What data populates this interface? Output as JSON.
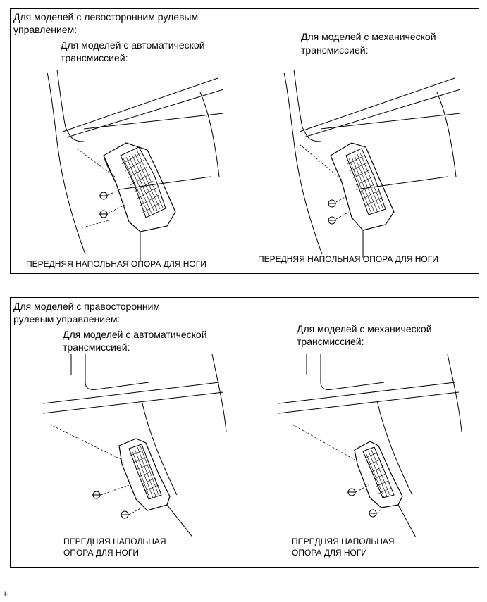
{
  "top_panel": {
    "heading_line1": "Для моделей с левосторонним рулевым",
    "heading_line2": "управлением:",
    "left": {
      "title_line1": "Для моделей с автоматической",
      "title_line2": "трансмиссией:",
      "callout": "ПЕРЕДНЯЯ НАПОЛЬНАЯ ОПОРА ДЛЯ НОГИ"
    },
    "right": {
      "title_line1": "Для моделей с механической",
      "title_line2": "трансмиссией:",
      "callout": "ПЕРЕДНЯЯ НАПОЛЬНАЯ ОПОРА ДЛЯ НОГИ"
    }
  },
  "bottom_panel": {
    "heading_line1": "Для моделей с правосторонним",
    "heading_line2": "рулевым управлением:",
    "left": {
      "title_line1": "Для моделей с автоматической",
      "title_line2": "трансмиссией:",
      "callout_line1": "ПЕРЕДНЯЯ НАПОЛЬНАЯ",
      "callout_line2": "ОПОРА ДЛЯ НОГИ"
    },
    "right": {
      "title_line1": "Для моделей с механической",
      "title_line2": "трансмиссией:",
      "callout_line1": "ПЕРЕДНЯЯ НАПОЛЬНАЯ",
      "callout_line2": "ОПОРА ДЛЯ НОГИ"
    }
  },
  "footer_code": "H"
}
